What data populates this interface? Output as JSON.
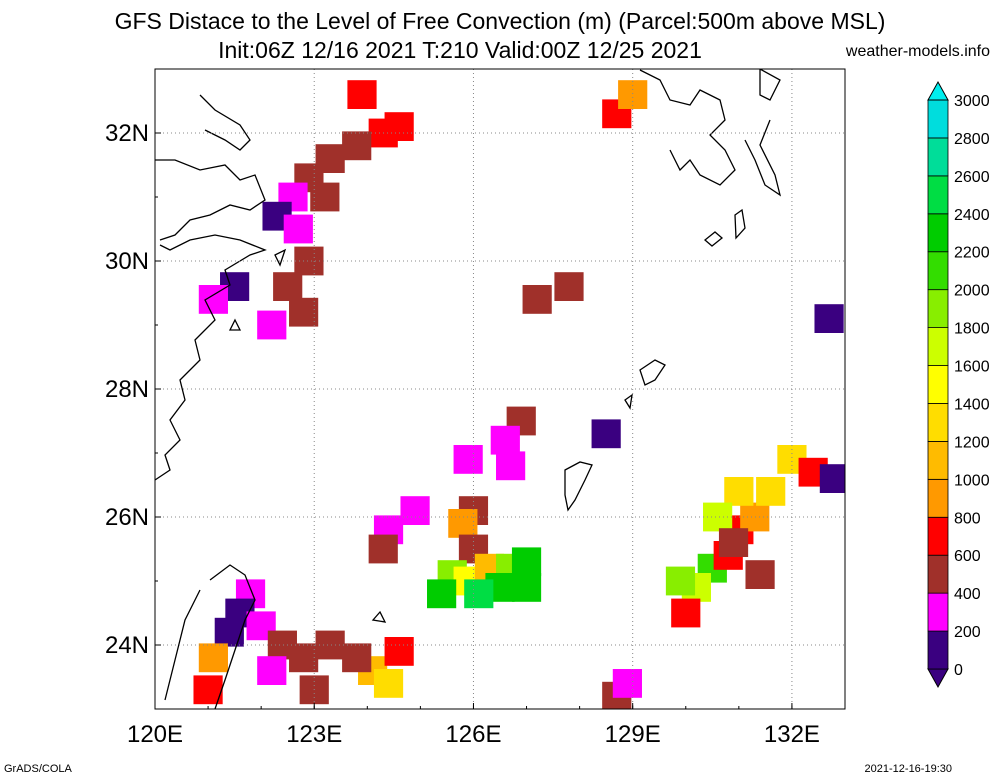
{
  "title": "GFS Distace to the Level of Free Convection (m) (Parcel:500m above MSL)",
  "subtitle": "Init:06Z 12/16 2021 T:210 Valid:00Z 12/25 2021",
  "site": "weather-models.info",
  "footer_left": "GrADS/COLA",
  "footer_right": "2021-12-16-19:30",
  "map": {
    "lon_range": [
      120,
      133
    ],
    "lat_range": [
      23,
      33
    ],
    "x_ticks": [
      "120E",
      "123E",
      "126E",
      "129E",
      "132E"
    ],
    "x_tick_values": [
      120,
      123,
      126,
      129,
      132
    ],
    "y_ticks": [
      "24N",
      "26N",
      "28N",
      "30N",
      "32N"
    ],
    "y_tick_values": [
      24,
      26,
      28,
      30,
      32
    ]
  },
  "colorbar": {
    "labels": [
      "0",
      "200",
      "400",
      "600",
      "800",
      "1000",
      "1200",
      "1400",
      "1600",
      "1800",
      "2000",
      "2200",
      "2400",
      "2600",
      "2800",
      "3000"
    ],
    "colors": [
      "#3a0080",
      "#ff00ff",
      "#a0302a",
      "#ff0000",
      "#ff9900",
      "#ffbb00",
      "#ffdd00",
      "#ffff00",
      "#ccff00",
      "#88ee00",
      "#33dd00",
      "#00cc00",
      "#00dd44",
      "#00dd99",
      "#00dddd",
      "#00eeee"
    ]
  },
  "field_cells": [
    {
      "lon": 123.9,
      "lat": 32.6,
      "c": 3
    },
    {
      "lon": 124.3,
      "lat": 32.0,
      "c": 3
    },
    {
      "lon": 124.6,
      "lat": 32.1,
      "c": 3
    },
    {
      "lon": 123.8,
      "lat": 31.8,
      "c": 2
    },
    {
      "lon": 123.3,
      "lat": 31.6,
      "c": 2
    },
    {
      "lon": 122.9,
      "lat": 31.3,
      "c": 2
    },
    {
      "lon": 123.2,
      "lat": 31.0,
      "c": 2
    },
    {
      "lon": 122.6,
      "lat": 31.0,
      "c": 1
    },
    {
      "lon": 122.3,
      "lat": 30.7,
      "c": 0
    },
    {
      "lon": 122.7,
      "lat": 30.5,
      "c": 1
    },
    {
      "lon": 122.9,
      "lat": 30.0,
      "c": 2
    },
    {
      "lon": 122.5,
      "lat": 29.6,
      "c": 2
    },
    {
      "lon": 122.8,
      "lat": 29.2,
      "c": 2
    },
    {
      "lon": 122.2,
      "lat": 29.0,
      "c": 1
    },
    {
      "lon": 121.5,
      "lat": 29.6,
      "c": 0
    },
    {
      "lon": 121.1,
      "lat": 29.4,
      "c": 1
    },
    {
      "lon": 127.8,
      "lat": 29.6,
      "c": 2
    },
    {
      "lon": 127.2,
      "lat": 29.4,
      "c": 2
    },
    {
      "lon": 128.7,
      "lat": 32.3,
      "c": 3
    },
    {
      "lon": 129.0,
      "lat": 32.6,
      "c": 4
    },
    {
      "lon": 126.9,
      "lat": 27.5,
      "c": 2
    },
    {
      "lon": 126.6,
      "lat": 27.2,
      "c": 1
    },
    {
      "lon": 126.7,
      "lat": 26.8,
      "c": 1
    },
    {
      "lon": 125.9,
      "lat": 26.9,
      "c": 1
    },
    {
      "lon": 128.5,
      "lat": 27.3,
      "c": 0
    },
    {
      "lon": 124.4,
      "lat": 25.8,
      "c": 1
    },
    {
      "lon": 124.9,
      "lat": 26.1,
      "c": 1
    },
    {
      "lon": 124.3,
      "lat": 25.5,
      "c": 2
    },
    {
      "lon": 126.0,
      "lat": 26.1,
      "c": 2
    },
    {
      "lon": 125.8,
      "lat": 25.9,
      "c": 4
    },
    {
      "lon": 126.0,
      "lat": 25.5,
      "c": 2
    },
    {
      "lon": 125.6,
      "lat": 25.1,
      "c": 9
    },
    {
      "lon": 125.9,
      "lat": 25.0,
      "c": 7
    },
    {
      "lon": 126.3,
      "lat": 25.2,
      "c": 5
    },
    {
      "lon": 126.7,
      "lat": 25.2,
      "c": 9
    },
    {
      "lon": 127.0,
      "lat": 25.3,
      "c": 11
    },
    {
      "lon": 126.5,
      "lat": 24.9,
      "c": 11
    },
    {
      "lon": 126.1,
      "lat": 24.8,
      "c": 12
    },
    {
      "lon": 127.0,
      "lat": 24.9,
      "c": 11
    },
    {
      "lon": 125.4,
      "lat": 24.8,
      "c": 11
    },
    {
      "lon": 130.5,
      "lat": 25.2,
      "c": 10
    },
    {
      "lon": 130.2,
      "lat": 24.9,
      "c": 8
    },
    {
      "lon": 130.8,
      "lat": 25.4,
      "c": 3
    },
    {
      "lon": 131.0,
      "lat": 25.8,
      "c": 3
    },
    {
      "lon": 131.3,
      "lat": 26.0,
      "c": 4
    },
    {
      "lon": 131.0,
      "lat": 26.4,
      "c": 6
    },
    {
      "lon": 130.6,
      "lat": 26.0,
      "c": 8
    },
    {
      "lon": 130.9,
      "lat": 25.6,
      "c": 2
    },
    {
      "lon": 131.6,
      "lat": 26.4,
      "c": 6
    },
    {
      "lon": 132.0,
      "lat": 26.9,
      "c": 6
    },
    {
      "lon": 132.4,
      "lat": 26.7,
      "c": 3
    },
    {
      "lon": 132.8,
      "lat": 26.6,
      "c": 0
    },
    {
      "lon": 131.4,
      "lat": 25.1,
      "c": 2
    },
    {
      "lon": 130.0,
      "lat": 24.5,
      "c": 3
    },
    {
      "lon": 129.9,
      "lat": 25.0,
      "c": 9
    },
    {
      "lon": 132.7,
      "lat": 29.1,
      "c": 0
    },
    {
      "lon": 121.8,
      "lat": 24.8,
      "c": 1
    },
    {
      "lon": 121.6,
      "lat": 24.5,
      "c": 0
    },
    {
      "lon": 121.4,
      "lat": 24.2,
      "c": 0
    },
    {
      "lon": 121.1,
      "lat": 23.8,
      "c": 4
    },
    {
      "lon": 121.0,
      "lat": 23.3,
      "c": 3
    },
    {
      "lon": 122.0,
      "lat": 24.3,
      "c": 1
    },
    {
      "lon": 122.4,
      "lat": 24.0,
      "c": 2
    },
    {
      "lon": 122.8,
      "lat": 23.8,
      "c": 2
    },
    {
      "lon": 123.3,
      "lat": 24.0,
      "c": 2
    },
    {
      "lon": 122.2,
      "lat": 23.6,
      "c": 1
    },
    {
      "lon": 123.0,
      "lat": 23.3,
      "c": 2
    },
    {
      "lon": 124.1,
      "lat": 23.6,
      "c": 5
    },
    {
      "lon": 124.4,
      "lat": 23.4,
      "c": 6
    },
    {
      "lon": 123.8,
      "lat": 23.8,
      "c": 2
    },
    {
      "lon": 124.6,
      "lat": 23.9,
      "c": 3
    },
    {
      "lon": 128.7,
      "lat": 23.2,
      "c": 2
    },
    {
      "lon": 128.9,
      "lat": 23.4,
      "c": 1
    }
  ]
}
